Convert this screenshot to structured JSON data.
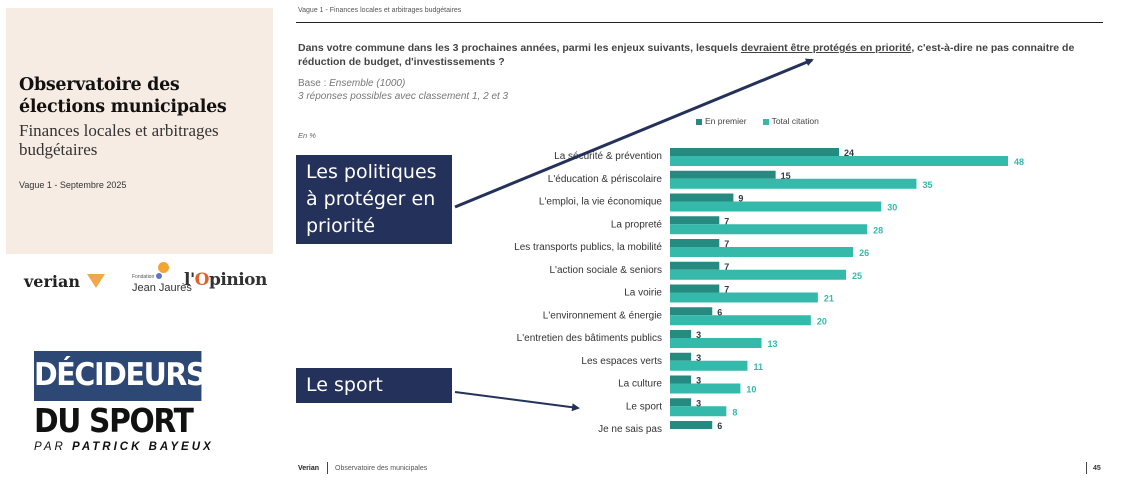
{
  "cover": {
    "title": "Observatoire des élections municipales",
    "subtitle": "Finances locales et arbitrages budgétaires",
    "wave": "Vague 1 - Septembre 2025"
  },
  "logos": {
    "verian": "verian",
    "jj_small": "Fondation",
    "jj_big": "Jean Jaurès",
    "opinion_prefix": "l'",
    "opinion_o": "O",
    "opinion_rest": "pinion"
  },
  "decideurs": {
    "line1": "DÉCIDEURS",
    "line2": "DU SPORT",
    "by_prefix": "PAR",
    "by_name": "PATRICK BAYEUX"
  },
  "slide": {
    "header": "Vague 1 - Finances locales et arbitrages budgétaires",
    "question_pre": "Dans votre commune dans les 3 prochaines années, parmi les enjeux suivants, lesquels ",
    "question_underlined": "devraient être protégés en priorité",
    "question_post": ", c'est-à-dire ne pas connaitre de réduction de budget, d'investissements ?",
    "base_label": "Base : ",
    "base_value": "Ensemble (1000)",
    "responses_note": "3 réponses possibles avec classement 1, 2 et 3",
    "unit": "En %"
  },
  "callouts": {
    "policies": "Les politiques à protéger en priorité",
    "sport": "Le sport"
  },
  "footer": {
    "brand": "Verian",
    "text": "Observatoire des municipales",
    "page": "45"
  },
  "colors": {
    "first": "#268a80",
    "total": "#35b9ab",
    "callout": "#24315a"
  },
  "chart_data": {
    "type": "bar",
    "orientation": "horizontal",
    "title": "Dans votre commune dans les 3 prochaines années, parmi les enjeux suivants, lesquels devraient être protégés en priorité ?",
    "xlabel": "En %",
    "ylabel": "",
    "legend_position": "top-right",
    "grid": false,
    "xlim": [
      0,
      50
    ],
    "categories": [
      "La sécurité & prévention",
      "L'éducation & périscolaire",
      "L'emploi, la vie économique",
      "La propreté",
      "Les transports publics, la mobilité",
      "L'action sociale & seniors",
      "La voirie",
      "L'environnement & énergie",
      "L'entretien des bâtiments publics",
      "Les espaces verts",
      "La culture",
      "Le sport",
      "Je ne sais pas"
    ],
    "series": [
      {
        "name": "En premier",
        "values": [
          24,
          15,
          9,
          7,
          7,
          7,
          7,
          6,
          3,
          3,
          3,
          3,
          6
        ]
      },
      {
        "name": "Total citation",
        "values": [
          48,
          35,
          30,
          28,
          26,
          25,
          21,
          20,
          13,
          11,
          10,
          8,
          null
        ]
      }
    ]
  }
}
